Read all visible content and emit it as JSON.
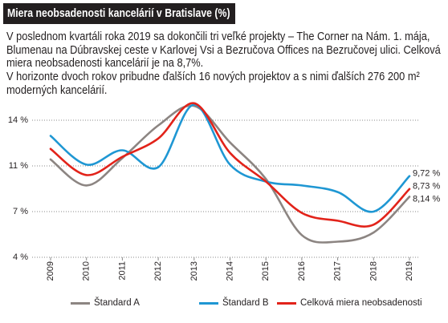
{
  "intro": {
    "lines": [
      "V poslednom kvartáli roka 2019 sa dokončili tri veľké projekty – The Corner na Nám. 1. mája,",
      "Blumenau na Dúbravskej ceste v Karlovej Vsi a Bezručova Offices na Bezručovej ulici. Celková",
      "miera neobsadenosti kancelárií je na 8,7%.",
      "V horizonte dvoch rokov pribudne ďalších 16 nových projektov a s nimi ďalších 276 200 m²",
      "moderných kancelárií."
    ]
  },
  "colors": {
    "title_background": "#231f20",
    "title_text": "#ffffff",
    "text": "#231f20",
    "grid": "#8a8a8a"
  },
  "chart_data": {
    "type": "line",
    "title": "Miera neobsadenosti kancelárií v Bratislave (%)",
    "x": [
      "2009",
      "2010",
      "2011",
      "2012",
      "2013",
      "2014",
      "2015",
      "2016",
      "2017",
      "2018",
      "2019"
    ],
    "yticks": [
      {
        "value": 14,
        "label": "14 %"
      },
      {
        "value": 10.5,
        "label": "11 %"
      },
      {
        "value": 7,
        "label": "7 %"
      },
      {
        "value": 3.5,
        "label": "4 %"
      }
    ],
    "ylim": [
      3.5,
      14
    ],
    "grid": true,
    "legend_position": "bottom",
    "series": [
      {
        "name": "Štandard A",
        "color": "#8c8582",
        "values": [
          11.0,
          9.0,
          11.1,
          13.6,
          15.1,
          12.3,
          9.5,
          5.2,
          4.7,
          5.4,
          8.14
        ],
        "end_label": "8,14 %"
      },
      {
        "name": "Štandard B",
        "color": "#1f97d3",
        "values": [
          12.8,
          10.6,
          11.7,
          10.4,
          15.2,
          10.6,
          9.3,
          9.0,
          8.5,
          7.0,
          9.72
        ],
        "end_label": "9,72 %"
      },
      {
        "name": "Celková miera neobsadenosti",
        "color": "#e2231a",
        "values": [
          11.8,
          9.8,
          11.2,
          12.6,
          15.3,
          11.5,
          9.3,
          6.9,
          6.3,
          6.0,
          8.73
        ],
        "end_label": "8,73 %"
      }
    ]
  }
}
